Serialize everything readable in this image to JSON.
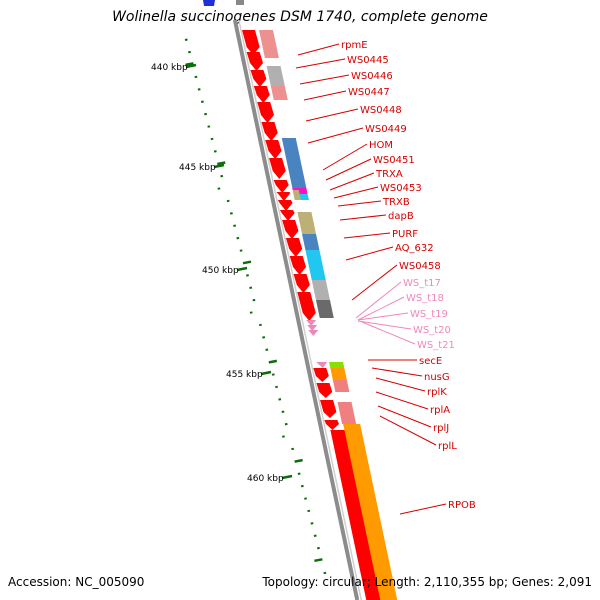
{
  "title": "Wolinella succinogenes DSM 1740, complete genome",
  "footer": {
    "accession": "Accession: NC_005090",
    "summary": "Topology: circular; Length: 2,110,355 bp; Genes: 2,091"
  },
  "colors": {
    "backbone": "#8c8c8c",
    "gene_red": "#ff0000",
    "label_red": "#d40000",
    "trna_pink": "#ee88bb",
    "tick_green": "#0b6e0b",
    "orange": "#ff9a00",
    "steelblue": "#4a84c0",
    "cyan": "#22c7f0",
    "khaki": "#bdb076",
    "grey": "#b0b0b0",
    "darkgrey": "#6a6a6a",
    "magenta": "#ff10c0",
    "salmon": "#f08080",
    "lime": "#88e000"
  },
  "scale": [
    {
      "label": "440 kbp"
    },
    {
      "label": "445 kbp"
    },
    {
      "label": "450 kbp"
    },
    {
      "label": "455 kbp"
    },
    {
      "label": "460 kbp"
    }
  ],
  "genes": [
    {
      "label": "rpmE",
      "color": "label_red"
    },
    {
      "label": "WS0445",
      "color": "label_red"
    },
    {
      "label": "WS0446",
      "color": "label_red"
    },
    {
      "label": "WS0447",
      "color": "label_red"
    },
    {
      "label": "WS0448",
      "color": "label_red"
    },
    {
      "label": "WS0449",
      "color": "label_red"
    },
    {
      "label": "HOM",
      "color": "label_red"
    },
    {
      "label": "WS0451",
      "color": "label_red"
    },
    {
      "label": "TRXA",
      "color": "label_red"
    },
    {
      "label": "WS0453",
      "color": "label_red"
    },
    {
      "label": "TRXB",
      "color": "label_red"
    },
    {
      "label": "dapB",
      "color": "label_red"
    },
    {
      "label": "PURF",
      "color": "label_red"
    },
    {
      "label": "AQ_632",
      "color": "label_red"
    },
    {
      "label": "WS0458",
      "color": "label_red"
    },
    {
      "label": "WS_t17",
      "color": "trna_pink"
    },
    {
      "label": "WS_t18",
      "color": "trna_pink"
    },
    {
      "label": "WS_t19",
      "color": "trna_pink"
    },
    {
      "label": "WS_t20",
      "color": "trna_pink"
    },
    {
      "label": "WS_t21",
      "color": "trna_pink"
    },
    {
      "label": "secE",
      "color": "label_red"
    },
    {
      "label": "nusG",
      "color": "label_red"
    },
    {
      "label": "rplK",
      "color": "label_red"
    },
    {
      "label": "rplA",
      "color": "label_red"
    },
    {
      "label": "rplJ",
      "color": "label_red"
    },
    {
      "label": "rplL",
      "color": "label_red"
    },
    {
      "label": "RPOB",
      "color": "label_red"
    }
  ]
}
